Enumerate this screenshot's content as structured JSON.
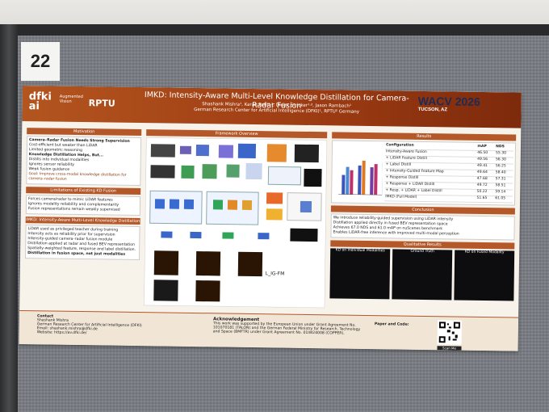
{
  "booth_number": "22",
  "poster": {
    "logo_left": "dfki ai",
    "logo_sub": "Augmented Vision",
    "logo_rptu": "RPTU",
    "title": "IMKD: Intensity-Aware Multi-Level Knowledge Distillation for Camera-Radar Fusion",
    "authors": "Shashank Mishra¹, Karan Patil¹·², Didier Stricker¹·², Jason Rambach¹",
    "affiliation": "German Research Center for Artificial Intelligence (DFKI)¹, RPTU² Germany",
    "conference": "WACV 2026",
    "conference_place": "TUCSON, AZ",
    "sections": {
      "motivation": "Motivation",
      "motivation_head": "Camera–Radar Fusion Needs Strong Supervision",
      "motivation_items": [
        "Cost-efficient but weaker than LiDAR",
        "Limited geometric reasoning"
      ],
      "kd_head": "Knowledge Distillation Helps, But...",
      "kd_items": [
        "Distills into individual modalities",
        "Ignores sensor reliability",
        "Weak fusion guidance"
      ],
      "goal": "Goal: Improve cross-modal knowledge distillation for camera–radar fusion",
      "limitations": "Limitations of Existing KD Fusion",
      "limitation_items": [
        "Forces camera/radar to mimic LiDAR features",
        "Ignores modality reliability and complementarity",
        "Fusion representations remain weakly supervised"
      ],
      "imkd": "IMKD: Intensity-Aware Multi-Level Knowledge Distillation",
      "imkd_items": [
        "LiDAR used as privileged teacher during training",
        "Intensity acts as reliability prior for supervision",
        "Intensity-guided camera–radar fusion module",
        "Distillation applied at radar and fused BEV representation",
        "Spatially-weighted feature, response and label distillation."
      ],
      "imkd_note": "Distillation in fusion space, not just modalities",
      "framework": "Framework Overview",
      "results": "Results",
      "conclusion": "Conclusion",
      "conclusion_items": [
        "We introduce reliability-guided supervision using LiDAR intensity",
        "Distillation applied directly in fused BEV representation space",
        "Achieves 67.0 NDS and 61.0 mAP on nuScenes benchmark",
        "Enables LiDAR-free inference with improved multi-modal perception"
      ],
      "qualitative": "Qualitative Results",
      "qual_labels": [
        "KD on Individual Modalities",
        "Ground Truth",
        "KD on Fused Modality"
      ]
    },
    "results_table": {
      "headers": [
        "Configuration",
        "mAP",
        "NDS"
      ],
      "rows": [
        [
          "Intensity-Aware Fusion",
          "46.50",
          "55.30"
        ],
        [
          "+ LiDAR Feature Distill",
          "49.56",
          "56.30"
        ],
        [
          "+ Label Distill",
          "49.41",
          "56.25"
        ],
        [
          "+ Intensity-Guided Feature Map",
          "49.64",
          "58.40"
        ],
        [
          "+ Response Distill",
          "47.68",
          "57.31"
        ],
        [
          "+ Response + LiDAR Distill",
          "49.72",
          "58.51"
        ],
        [
          "+ Resp. + LiDAR + Label Distill",
          "50.22",
          "59.14"
        ],
        [
          "IMKD (Full Model)",
          "51.65",
          "61.05"
        ]
      ]
    },
    "footer": {
      "contact": "Contact",
      "contact_lines": [
        "Shashank Mishra",
        "German Research Center for Artificial Intelligence (DFKI)",
        "Email: shashank.mishra@dfki.de",
        "Website: https://av.dfki.de/"
      ],
      "ack": "Acknowledgement",
      "ack_text": "This work was supported by the European Union under Grant Agreement No. 101070181 (TALON) and the German Federal Ministry for Research, Technology and Space (BMFTR) under Grant Agreement No. 01IW24008 (COPPER).",
      "paper_code": "Paper and Code:",
      "scan": "Scan Me"
    }
  },
  "colors": {
    "header": "#a8461a",
    "accent": "#b4582a",
    "poster_bg": "#f7f2ea"
  }
}
